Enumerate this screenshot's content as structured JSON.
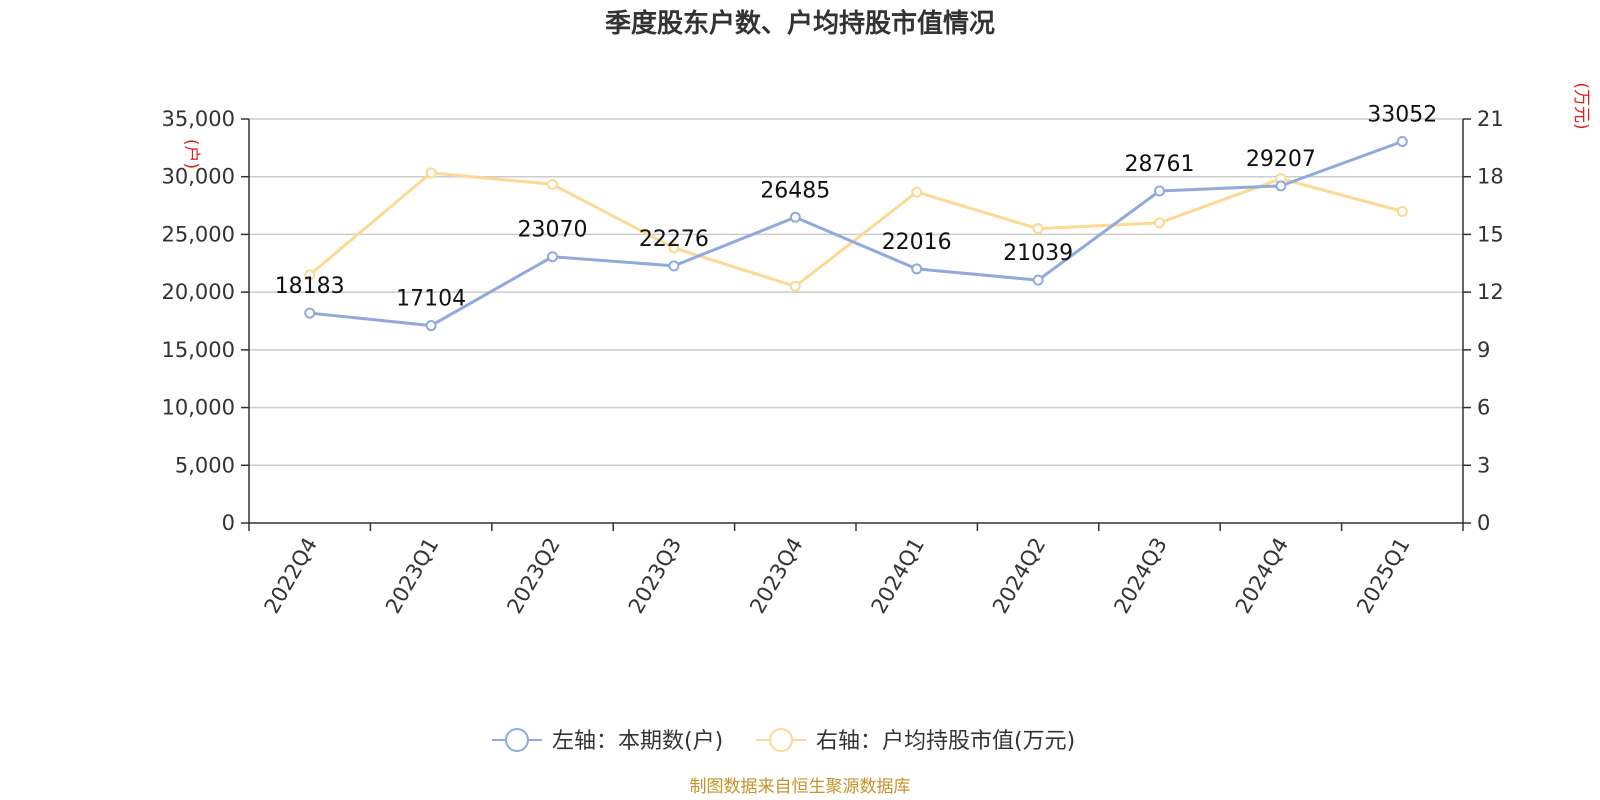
{
  "chart_data": {
    "type": "line",
    "title": "季度股东户数、户均持股市值情况",
    "categories": [
      "2022Q4",
      "2023Q1",
      "2023Q2",
      "2023Q3",
      "2023Q4",
      "2024Q1",
      "2024Q2",
      "2024Q3",
      "2024Q4",
      "2025Q1"
    ],
    "left_axis": {
      "unit": "(户)",
      "ylim": [
        0,
        35000
      ],
      "ticks": [
        0,
        5000,
        10000,
        15000,
        20000,
        25000,
        30000,
        35000
      ],
      "tick_labels": [
        "0",
        "5,000",
        "10,000",
        "15,000",
        "20,000",
        "25,000",
        "30,000",
        "35,000"
      ]
    },
    "right_axis": {
      "unit": "(万元)",
      "ylim": [
        0,
        21
      ],
      "ticks": [
        0,
        3,
        6,
        9,
        12,
        15,
        18,
        21
      ],
      "tick_labels": [
        "0",
        "3",
        "6",
        "9",
        "12",
        "15",
        "18",
        "21"
      ]
    },
    "series": [
      {
        "name": "左轴：本期数(户)",
        "axis": "left",
        "color": "#8faadc",
        "values": [
          18183,
          17104,
          23070,
          22276,
          26485,
          22016,
          21039,
          28761,
          29207,
          33052
        ],
        "labels": [
          "18183",
          "17104",
          "23070",
          "22276",
          "26485",
          "22016",
          "21039",
          "28761",
          "29207",
          "33052"
        ]
      },
      {
        "name": "右轴：户均持股市值(万元)",
        "axis": "right",
        "color": "#fcd995",
        "values": [
          12.9,
          18.2,
          17.6,
          14.3,
          12.3,
          17.2,
          15.3,
          15.6,
          17.9,
          16.2
        ]
      }
    ],
    "grid": true,
    "legend_position": "bottom-center"
  },
  "footer": {
    "source": "制图数据来自恒生聚源数据库"
  }
}
